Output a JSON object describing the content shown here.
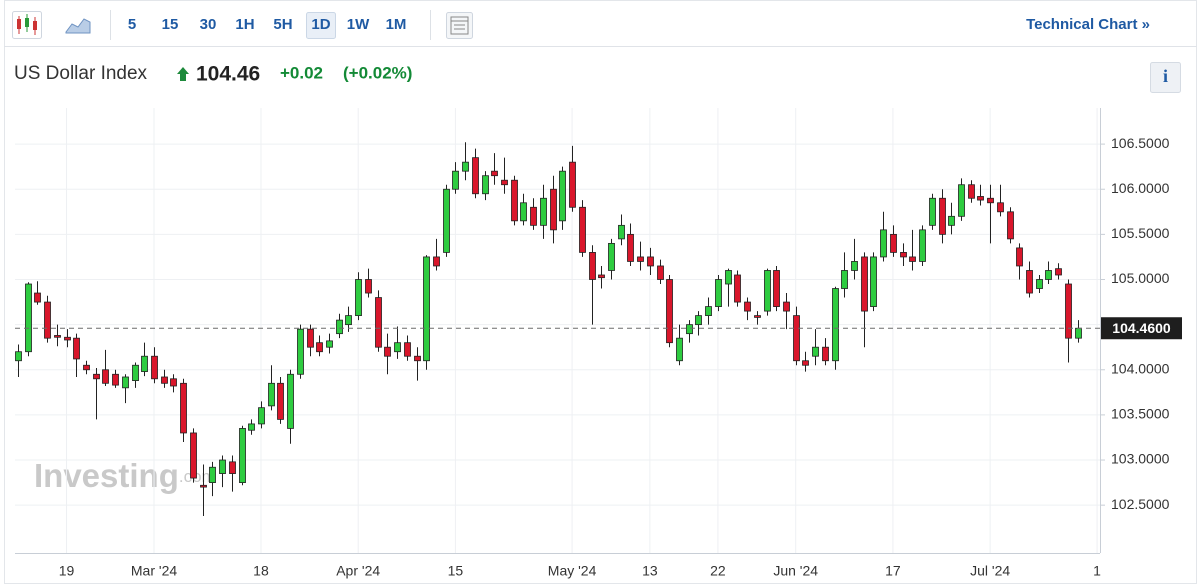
{
  "toolbar": {
    "intervals": [
      "5",
      "15",
      "30",
      "1H",
      "5H",
      "1D",
      "1W",
      "1M"
    ],
    "active_interval": "1D",
    "technical_chart_link": "Technical Chart »"
  },
  "header": {
    "name": "US Dollar Index",
    "price": "104.46",
    "change": "+0.02",
    "change_percent": "(+0.02%)",
    "direction": "up"
  },
  "info_button": "i",
  "watermark": {
    "brand": "Investing",
    "suffix": ".com"
  },
  "chart_data": {
    "type": "candlestick",
    "up_color": "#2ecc40",
    "down_color": "#d9162b",
    "grid": true,
    "xlim": [
      -0.3,
      111.3
    ],
    "xticks": [
      {
        "value": 5,
        "label": "19"
      },
      {
        "value": 14,
        "label": "Mar '24"
      },
      {
        "value": 25,
        "label": "18"
      },
      {
        "value": 35,
        "label": "Apr '24"
      },
      {
        "value": 45,
        "label": "15"
      },
      {
        "value": 57,
        "label": "May '24"
      },
      {
        "value": 65,
        "label": "13"
      },
      {
        "value": 72,
        "label": "22"
      },
      {
        "value": 80,
        "label": "Jun '24"
      },
      {
        "value": 90,
        "label": "17"
      },
      {
        "value": 100,
        "label": "Jul '24"
      },
      {
        "value": 111,
        "label": "1"
      }
    ],
    "ylim": [
      101.97,
      106.9
    ],
    "yticks": [
      {
        "value": 102.5,
        "label": "102.5000"
      },
      {
        "value": 103,
        "label": "103.0000"
      },
      {
        "value": 103.5,
        "label": "103.5000"
      },
      {
        "value": 104,
        "label": "104.0000"
      },
      {
        "value": 104.5,
        "label": "104.5000"
      },
      {
        "value": 105,
        "label": "105.0000"
      },
      {
        "value": 105.5,
        "label": "105.5000"
      },
      {
        "value": 106,
        "label": "106.0000"
      },
      {
        "value": 106.5,
        "label": "106.5000"
      }
    ],
    "price_line": {
      "value": 104.46,
      "label": "104.4600"
    },
    "open": [
      104.1,
      104.2,
      104.85,
      104.75,
      104.38,
      104.36,
      104.35,
      104.05,
      103.95,
      104.0,
      103.95,
      103.8,
      103.88,
      103.98,
      104.15,
      103.92,
      103.9,
      103.85,
      103.3,
      102.72,
      102.75,
      102.85,
      102.98,
      102.75,
      103.33,
      103.4,
      103.6,
      103.85,
      103.35,
      103.95,
      104.45,
      104.3,
      104.25,
      104.4,
      104.5,
      104.6,
      105.0,
      104.8,
      104.25,
      104.2,
      104.3,
      104.15,
      104.1,
      105.25,
      105.3,
      106.0,
      106.2,
      106.35,
      105.95,
      106.2,
      106.1,
      106.1,
      105.65,
      105.8,
      105.6,
      106.0,
      105.65,
      106.3,
      105.8,
      105.3,
      105.05,
      105.1,
      105.45,
      105.5,
      105.25,
      105.25,
      105.15,
      105.0,
      104.1,
      104.4,
      104.5,
      104.6,
      104.7,
      104.95,
      105.05,
      104.75,
      104.6,
      104.65,
      105.1,
      104.75,
      104.6,
      104.1,
      104.15,
      104.25,
      104.1,
      104.9,
      105.1,
      105.25,
      104.7,
      105.25,
      105.5,
      105.3,
      105.25,
      105.2,
      105.6,
      105.9,
      105.6,
      105.7,
      106.05,
      105.92,
      105.9,
      105.85,
      105.75,
      105.35,
      105.1,
      104.9,
      105.0,
      105.12,
      104.95,
      104.35
    ],
    "high": [
      104.28,
      104.97,
      104.98,
      104.82,
      104.5,
      104.45,
      104.4,
      104.1,
      104.02,
      104.22,
      104.0,
      103.95,
      104.08,
      104.3,
      104.25,
      104.0,
      103.95,
      103.9,
      103.35,
      102.95,
      102.98,
      103.05,
      103.05,
      103.38,
      103.45,
      103.65,
      104.05,
      103.92,
      104.0,
      104.5,
      104.5,
      104.38,
      104.4,
      104.62,
      104.7,
      105.08,
      105.12,
      104.88,
      104.4,
      104.48,
      104.38,
      104.25,
      105.27,
      105.45,
      106.05,
      106.3,
      106.52,
      106.45,
      106.2,
      106.4,
      106.35,
      106.15,
      105.95,
      105.9,
      106.05,
      106.15,
      106.25,
      106.48,
      105.88,
      105.38,
      105.15,
      105.45,
      105.72,
      105.62,
      105.42,
      105.35,
      105.22,
      105.05,
      104.5,
      104.55,
      104.65,
      104.8,
      105.05,
      105.12,
      105.1,
      104.8,
      104.65,
      105.12,
      105.15,
      104.85,
      104.7,
      104.2,
      104.45,
      104.35,
      104.92,
      105.3,
      105.45,
      105.3,
      105.3,
      105.75,
      105.6,
      105.4,
      105.55,
      105.6,
      105.95,
      106.0,
      105.85,
      106.12,
      106.1,
      106.05,
      106.05,
      106.05,
      105.8,
      105.4,
      105.2,
      105.05,
      105.2,
      105.18,
      105.0,
      104.55
    ],
    "low": [
      103.92,
      104.15,
      104.72,
      104.3,
      104.26,
      104.25,
      103.92,
      103.95,
      103.45,
      103.82,
      103.8,
      103.63,
      103.8,
      103.93,
      103.85,
      103.8,
      103.75,
      103.2,
      102.75,
      102.38,
      102.6,
      102.7,
      102.65,
      102.72,
      103.28,
      103.35,
      103.55,
      103.4,
      103.18,
      103.9,
      104.15,
      104.15,
      104.18,
      104.35,
      104.42,
      104.55,
      104.8,
      104.2,
      103.95,
      104.12,
      104.1,
      103.88,
      104.0,
      105.1,
      105.25,
      105.95,
      106.1,
      105.9,
      105.88,
      106.05,
      105.95,
      105.6,
      105.6,
      105.55,
      105.45,
      105.4,
      105.55,
      105.75,
      105.25,
      104.5,
      104.9,
      105.0,
      105.38,
      105.15,
      105.1,
      105.05,
      104.95,
      104.25,
      104.05,
      104.3,
      104.38,
      104.5,
      104.65,
      104.7,
      104.7,
      104.55,
      104.5,
      104.6,
      104.65,
      104.45,
      104.05,
      103.98,
      104.05,
      104.05,
      104.0,
      104.8,
      105.0,
      104.25,
      104.65,
      105.2,
      105.25,
      105.15,
      105.1,
      105.15,
      105.55,
      105.4,
      105.5,
      105.65,
      105.85,
      105.82,
      105.4,
      105.7,
      105.4,
      105.0,
      104.8,
      104.85,
      104.95,
      105.0,
      104.08,
      104.3
    ],
    "close": [
      104.2,
      104.95,
      104.75,
      104.35,
      104.36,
      104.33,
      104.12,
      104.0,
      103.9,
      103.85,
      103.83,
      103.92,
      104.05,
      104.15,
      103.9,
      103.85,
      103.82,
      103.3,
      102.8,
      102.7,
      102.92,
      103.0,
      102.85,
      103.35,
      103.4,
      103.58,
      103.85,
      103.45,
      103.95,
      104.45,
      104.25,
      104.2,
      104.32,
      104.55,
      104.6,
      105.0,
      104.85,
      104.25,
      104.15,
      104.3,
      104.15,
      104.1,
      105.25,
      105.15,
      106.0,
      106.2,
      106.3,
      105.95,
      106.15,
      106.15,
      106.05,
      105.65,
      105.85,
      105.6,
      105.9,
      105.55,
      106.2,
      105.8,
      105.3,
      105.0,
      105.02,
      105.4,
      105.6,
      105.2,
      105.2,
      105.15,
      105.0,
      104.3,
      104.35,
      104.5,
      104.6,
      104.7,
      105.0,
      105.1,
      104.75,
      104.65,
      104.58,
      105.1,
      104.7,
      104.65,
      104.1,
      104.05,
      104.25,
      104.1,
      104.9,
      105.1,
      105.2,
      104.65,
      105.25,
      105.55,
      105.3,
      105.25,
      105.2,
      105.55,
      105.9,
      105.5,
      105.7,
      106.05,
      105.9,
      105.88,
      105.85,
      105.75,
      105.45,
      105.15,
      104.85,
      105.0,
      105.1,
      105.05,
      104.35,
      104.46
    ]
  }
}
